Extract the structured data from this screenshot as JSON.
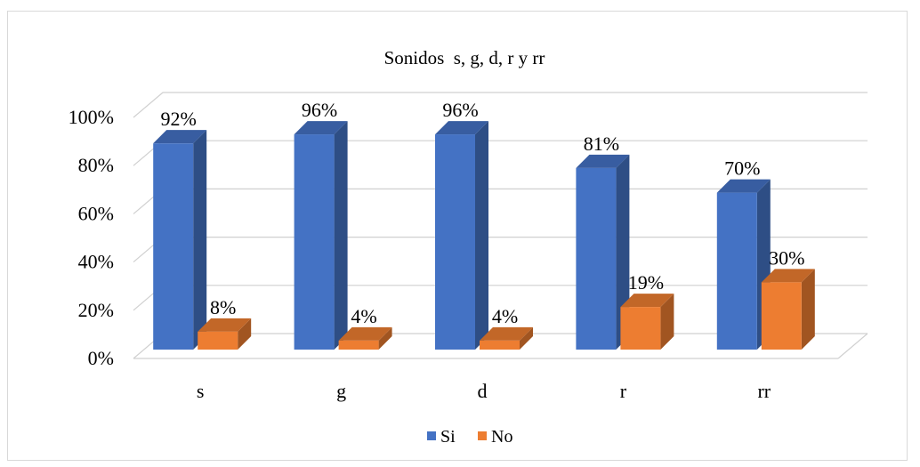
{
  "chart_data": {
    "type": "bar",
    "title": "Sonidos  s, g, d, r y rr",
    "xlabel": "",
    "ylabel": "",
    "categories": [
      "s",
      "g",
      "d",
      "r",
      "rr"
    ],
    "series": [
      {
        "name": "Si",
        "values": [
          92,
          96,
          96,
          81,
          70
        ],
        "labels": [
          "92%",
          "96%",
          "96%",
          "81%",
          "70%"
        ],
        "color": "#4472C4"
      },
      {
        "name": "No",
        "values": [
          8,
          4,
          4,
          19,
          30
        ],
        "labels": [
          "8%",
          "4%",
          "4%",
          "19%",
          "30%"
        ],
        "color": "#ED7D31"
      }
    ],
    "ylim": [
      0,
      100
    ],
    "yticks": [
      "0%",
      "20%",
      "40%",
      "60%",
      "80%",
      "100%"
    ],
    "grid": true,
    "style": "3d-clustered-column",
    "legend_position": "bottom"
  }
}
